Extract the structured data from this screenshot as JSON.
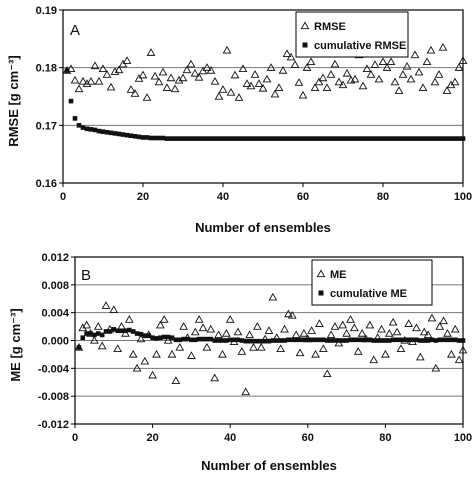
{
  "chart_data": [
    {
      "type": "scatter",
      "panel_label": "A",
      "xlabel": "Number of ensembles",
      "ylabel": "RMSE [g cm⁻³]",
      "xlim": [
        0,
        100
      ],
      "ylim": [
        0.16,
        0.19
      ],
      "xticks": [
        0,
        20,
        40,
        60,
        80,
        100
      ],
      "xtick_labels": [
        "0",
        "20",
        "40",
        "60",
        "80",
        "100"
      ],
      "yticks": [
        0.16,
        0.17,
        0.18,
        0.19
      ],
      "ytick_labels": [
        "0.16",
        "0.17",
        "0.18",
        "0.19"
      ],
      "grid": "horizontal",
      "legend_position": "top-right",
      "series": [
        {
          "name": "RMSE",
          "marker": "open-triangle",
          "x": [
            1,
            2,
            3,
            4,
            5,
            6,
            7,
            8,
            9,
            10,
            11,
            12,
            13,
            14,
            15,
            16,
            17,
            18,
            19,
            20,
            21,
            22,
            23,
            24,
            25,
            26,
            27,
            28,
            29,
            30,
            31,
            32,
            33,
            34,
            35,
            36,
            37,
            38,
            39,
            40,
            41,
            42,
            43,
            44,
            45,
            46,
            47,
            48,
            49,
            50,
            51,
            52,
            53,
            54,
            55,
            56,
            57,
            58,
            59,
            60,
            61,
            62,
            63,
            64,
            65,
            66,
            67,
            68,
            69,
            70,
            71,
            72,
            73,
            74,
            75,
            76,
            77,
            78,
            79,
            80,
            81,
            82,
            83,
            84,
            85,
            86,
            87,
            88,
            89,
            90,
            91,
            92,
            93,
            94,
            95,
            96,
            97,
            98,
            99,
            100
          ],
          "y": [
            0.1795,
            0.1798,
            0.1778,
            0.1763,
            0.1776,
            0.1772,
            0.1776,
            0.1803,
            0.1776,
            0.1798,
            0.1788,
            0.1766,
            0.1793,
            0.1796,
            0.1806,
            0.1812,
            0.1762,
            0.1755,
            0.1781,
            0.1787,
            0.1748,
            0.1826,
            0.1785,
            0.1775,
            0.1792,
            0.1765,
            0.1782,
            0.1763,
            0.1778,
            0.1782,
            0.1796,
            0.1806,
            0.179,
            0.1783,
            0.1794,
            0.18,
            0.1795,
            0.1776,
            0.175,
            0.1762,
            0.183,
            0.1757,
            0.1787,
            0.1748,
            0.1798,
            0.1772,
            0.1768,
            0.1788,
            0.1772,
            0.1764,
            0.178,
            0.18,
            0.1754,
            0.1765,
            0.1795,
            0.1824,
            0.1818,
            0.1805,
            0.1774,
            0.1752,
            0.18,
            0.181,
            0.1765,
            0.1775,
            0.1782,
            0.1765,
            0.1788,
            0.1806,
            0.1775,
            0.177,
            0.179,
            0.1778,
            0.178,
            0.1822,
            0.1768,
            0.1798,
            0.1788,
            0.1805,
            0.178,
            0.181,
            0.18,
            0.181,
            0.1775,
            0.176,
            0.1788,
            0.1802,
            0.178,
            0.1822,
            0.1792,
            0.1765,
            0.181,
            0.183,
            0.1775,
            0.1788,
            0.1835,
            0.176,
            0.177,
            0.1775,
            0.18,
            0.1812
          ]
        },
        {
          "name": "cumulative RMSE",
          "marker": "filled-square",
          "x": [
            1,
            2,
            3,
            4,
            5,
            6,
            7,
            8,
            9,
            10,
            11,
            12,
            13,
            14,
            15,
            16,
            17,
            18,
            19,
            20,
            21,
            22,
            23,
            24,
            25,
            26,
            27,
            28,
            29,
            30,
            31,
            32,
            33,
            34,
            35,
            36,
            37,
            38,
            39,
            40,
            41,
            42,
            43,
            44,
            45,
            46,
            47,
            48,
            49,
            50,
            51,
            52,
            53,
            54,
            55,
            56,
            57,
            58,
            59,
            60,
            61,
            62,
            63,
            64,
            65,
            66,
            67,
            68,
            69,
            70,
            71,
            72,
            73,
            74,
            75,
            76,
            77,
            78,
            79,
            80,
            81,
            82,
            83,
            84,
            85,
            86,
            87,
            88,
            89,
            90,
            91,
            92,
            93,
            94,
            95,
            96,
            97,
            98,
            99,
            100
          ],
          "y": [
            0.1795,
            0.1742,
            0.1712,
            0.17,
            0.1696,
            0.1694,
            0.1693,
            0.1692,
            0.169,
            0.1689,
            0.1688,
            0.1687,
            0.1686,
            0.1685,
            0.1684,
            0.1683,
            0.1682,
            0.1681,
            0.168,
            0.1679,
            0.1679,
            0.1678,
            0.1678,
            0.1678,
            0.1678,
            0.1677,
            0.1677,
            0.1677,
            0.1677,
            0.1677,
            0.1677,
            0.1677,
            0.1677,
            0.1677,
            0.1677,
            0.1677,
            0.1677,
            0.1677,
            0.1677,
            0.1677,
            0.1677,
            0.1677,
            0.1677,
            0.1677,
            0.1677,
            0.1677,
            0.1677,
            0.1677,
            0.1677,
            0.1677,
            0.1677,
            0.1677,
            0.1677,
            0.1677,
            0.1677,
            0.1677,
            0.1677,
            0.1677,
            0.1677,
            0.1677,
            0.1677,
            0.1677,
            0.1677,
            0.1677,
            0.1677,
            0.1677,
            0.1677,
            0.1677,
            0.1677,
            0.1677,
            0.1677,
            0.1677,
            0.1677,
            0.1677,
            0.1677,
            0.1677,
            0.1677,
            0.1677,
            0.1677,
            0.1677,
            0.1677,
            0.1677,
            0.1677,
            0.1677,
            0.1677,
            0.1677,
            0.1677,
            0.1677,
            0.1677,
            0.1677,
            0.1677,
            0.1677,
            0.1677,
            0.1677,
            0.1677,
            0.1677,
            0.1677,
            0.1677,
            0.1677,
            0.1677
          ]
        }
      ]
    },
    {
      "type": "scatter",
      "panel_label": "B",
      "xlabel": "Number of ensembles",
      "ylabel": "ME [g cm⁻³]",
      "xlim": [
        0,
        100
      ],
      "ylim": [
        -0.012,
        0.012
      ],
      "xticks": [
        0,
        20,
        40,
        60,
        80,
        100
      ],
      "xtick_labels": [
        "0",
        "20",
        "40",
        "60",
        "80",
        "100"
      ],
      "yticks": [
        -0.012,
        -0.008,
        -0.004,
        0.0,
        0.004,
        0.008,
        0.012
      ],
      "ytick_labels": [
        "-0.012",
        "-0.008",
        "-0.004",
        "0.000",
        "0.004",
        "0.008",
        "0.012"
      ],
      "grid": "horizontal",
      "legend_position": "top-right",
      "series": [
        {
          "name": "ME",
          "marker": "open-triangle",
          "x": [
            1,
            2,
            3,
            4,
            5,
            6,
            7,
            8,
            9,
            10,
            11,
            12,
            13,
            14,
            15,
            16,
            17,
            18,
            19,
            20,
            21,
            22,
            23,
            24,
            25,
            26,
            27,
            28,
            29,
            30,
            31,
            32,
            33,
            34,
            35,
            36,
            37,
            38,
            39,
            40,
            41,
            42,
            43,
            44,
            45,
            46,
            47,
            48,
            49,
            50,
            51,
            52,
            53,
            54,
            55,
            56,
            57,
            58,
            59,
            60,
            61,
            62,
            63,
            64,
            65,
            66,
            67,
            68,
            69,
            70,
            71,
            72,
            73,
            74,
            75,
            76,
            77,
            78,
            79,
            80,
            81,
            82,
            83,
            84,
            85,
            86,
            87,
            88,
            89,
            90,
            91,
            92,
            93,
            94,
            95,
            96,
            97,
            98,
            99,
            100
          ],
          "y": [
            -0.001,
            0.0018,
            0.0022,
            0.001,
            0.0,
            0.002,
            -0.0008,
            0.005,
            0.0016,
            0.0044,
            -0.0012,
            0.002,
            0.001,
            0.003,
            -0.002,
            -0.004,
            0.0002,
            -0.003,
            0.0008,
            -0.005,
            -0.002,
            0.0022,
            0.003,
            0.0,
            -0.002,
            -0.0058,
            -0.001,
            0.002,
            0.0004,
            -0.0022,
            0.0012,
            0.003,
            0.0018,
            -0.001,
            0.0016,
            -0.0054,
            0.0008,
            -0.002,
            0.001,
            0.003,
            -0.0002,
            0.0012,
            -0.0016,
            -0.0074,
            0.0008,
            -0.001,
            0.002,
            -0.001,
            0.0002,
            0.0014,
            0.0062,
            0.0004,
            -0.0012,
            0.0016,
            0.0038,
            0.0036,
            0.0008,
            -0.0018,
            0.001,
            0.0002,
            0.0014,
            -0.002,
            0.0024,
            -0.0012,
            -0.0048,
            0.0008,
            0.002,
            -0.0004,
            0.0022,
            0.001,
            0.003,
            0.0018,
            -0.0016,
            0.001,
            0.0002,
            0.0022,
            -0.0028,
            0.0004,
            0.0016,
            -0.002,
            0.001,
            0.0026,
            0.0012,
            -0.0012,
            0.0,
            0.0024,
            -0.0002,
            0.0018,
            -0.0024,
            0.0012,
            0.0008,
            0.0032,
            -0.004,
            0.002,
            0.0028,
            0.001,
            -0.002,
            0.0016,
            -0.0028,
            -0.0014
          ]
        },
        {
          "name": "cumulative ME",
          "marker": "filled-square",
          "x": [
            1,
            2,
            3,
            4,
            5,
            6,
            7,
            8,
            9,
            10,
            11,
            12,
            13,
            14,
            15,
            16,
            17,
            18,
            19,
            20,
            21,
            22,
            23,
            24,
            25,
            26,
            27,
            28,
            29,
            30,
            31,
            32,
            33,
            34,
            35,
            36,
            37,
            38,
            39,
            40,
            41,
            42,
            43,
            44,
            45,
            46,
            47,
            48,
            49,
            50,
            51,
            52,
            53,
            54,
            55,
            56,
            57,
            58,
            59,
            60,
            61,
            62,
            63,
            64,
            65,
            66,
            67,
            68,
            69,
            70,
            71,
            72,
            73,
            74,
            75,
            76,
            77,
            78,
            79,
            80,
            81,
            82,
            83,
            84,
            85,
            86,
            87,
            88,
            89,
            90,
            91,
            92,
            93,
            94,
            95,
            96,
            97,
            98,
            99,
            100
          ],
          "y": [
            -0.001,
            0.0004,
            0.001,
            0.001,
            0.0008,
            0.001,
            0.0008,
            0.0013,
            0.0013,
            0.0016,
            0.0014,
            0.0014,
            0.0014,
            0.0015,
            0.0013,
            0.001,
            0.0009,
            0.0007,
            0.0007,
            0.0004,
            0.0003,
            0.0004,
            0.0005,
            0.0005,
            0.0004,
            0.0001,
            0.0001,
            0.0002,
            0.0002,
            0.0001,
            0.0001,
            0.0002,
            0.0002,
            0.0002,
            0.0002,
            0.0,
            0.0,
            0.0,
            0.0,
            0.0001,
            0.0001,
            0.0001,
            0.0,
            -0.0001,
            -0.0001,
            -0.0001,
            -0.0001,
            -0.0001,
            -0.0001,
            -0.0001,
            0.0,
            0.0,
            0.0,
            0.0,
            0.0001,
            0.0001,
            0.0001,
            0.0001,
            0.0001,
            0.0001,
            0.0001,
            0.0001,
            0.0001,
            0.0001,
            0.0,
            0.0,
            0.0,
            0.0,
            0.0,
            0.0,
            0.0001,
            0.0001,
            0.0001,
            0.0001,
            0.0001,
            0.0001,
            0.0,
            0.0,
            0.0,
            0.0,
            0.0,
            0.0001,
            0.0001,
            0.0001,
            0.0001,
            0.0001,
            0.0001,
            0.0001,
            0.0,
            0.0,
            0.0,
            0.0001,
            0.0,
            0.0001,
            0.0001,
            0.0001,
            0.0001,
            0.0001,
            0.0,
            0.0
          ]
        }
      ]
    }
  ]
}
